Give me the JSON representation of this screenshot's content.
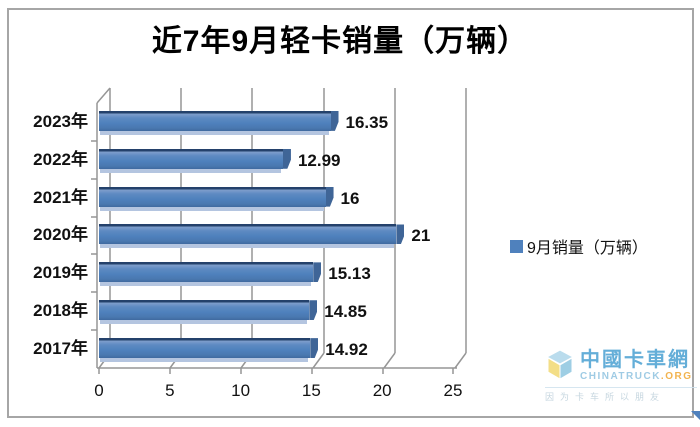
{
  "title": "近7年9月轻卡销量（万辆）",
  "legend": {
    "label": "9月销量（万辆）",
    "marker_color": "#4F81BD"
  },
  "chart_data": {
    "type": "bar",
    "orientation": "horizontal",
    "style": "3d",
    "title": "近7年9月轻卡销量（万辆）",
    "categories": [
      "2023年",
      "2022年",
      "2021年",
      "2020年",
      "2019年",
      "2018年",
      "2017年"
    ],
    "values": [
      16.35,
      12.99,
      16,
      21,
      15.13,
      14.85,
      14.92
    ],
    "value_labels": [
      "16.35",
      "12.99",
      "16",
      "21",
      "15.13",
      "14.85",
      "14.92"
    ],
    "series_name": "9月销量（万辆）",
    "xlabel": "",
    "ylabel": "",
    "xlim": [
      0,
      25
    ],
    "xticks": [
      0,
      5,
      10,
      15,
      20,
      25
    ],
    "grid": true,
    "legend_position": "right",
    "bar_color": "#4F81BD",
    "gridline_color": "#969696"
  },
  "watermark": {
    "name_cn": "中國卡車網",
    "name_en": "CHINATRUCK",
    "domain_suffix": ".ORG",
    "tagline": "因为卡车所以朋友"
  }
}
